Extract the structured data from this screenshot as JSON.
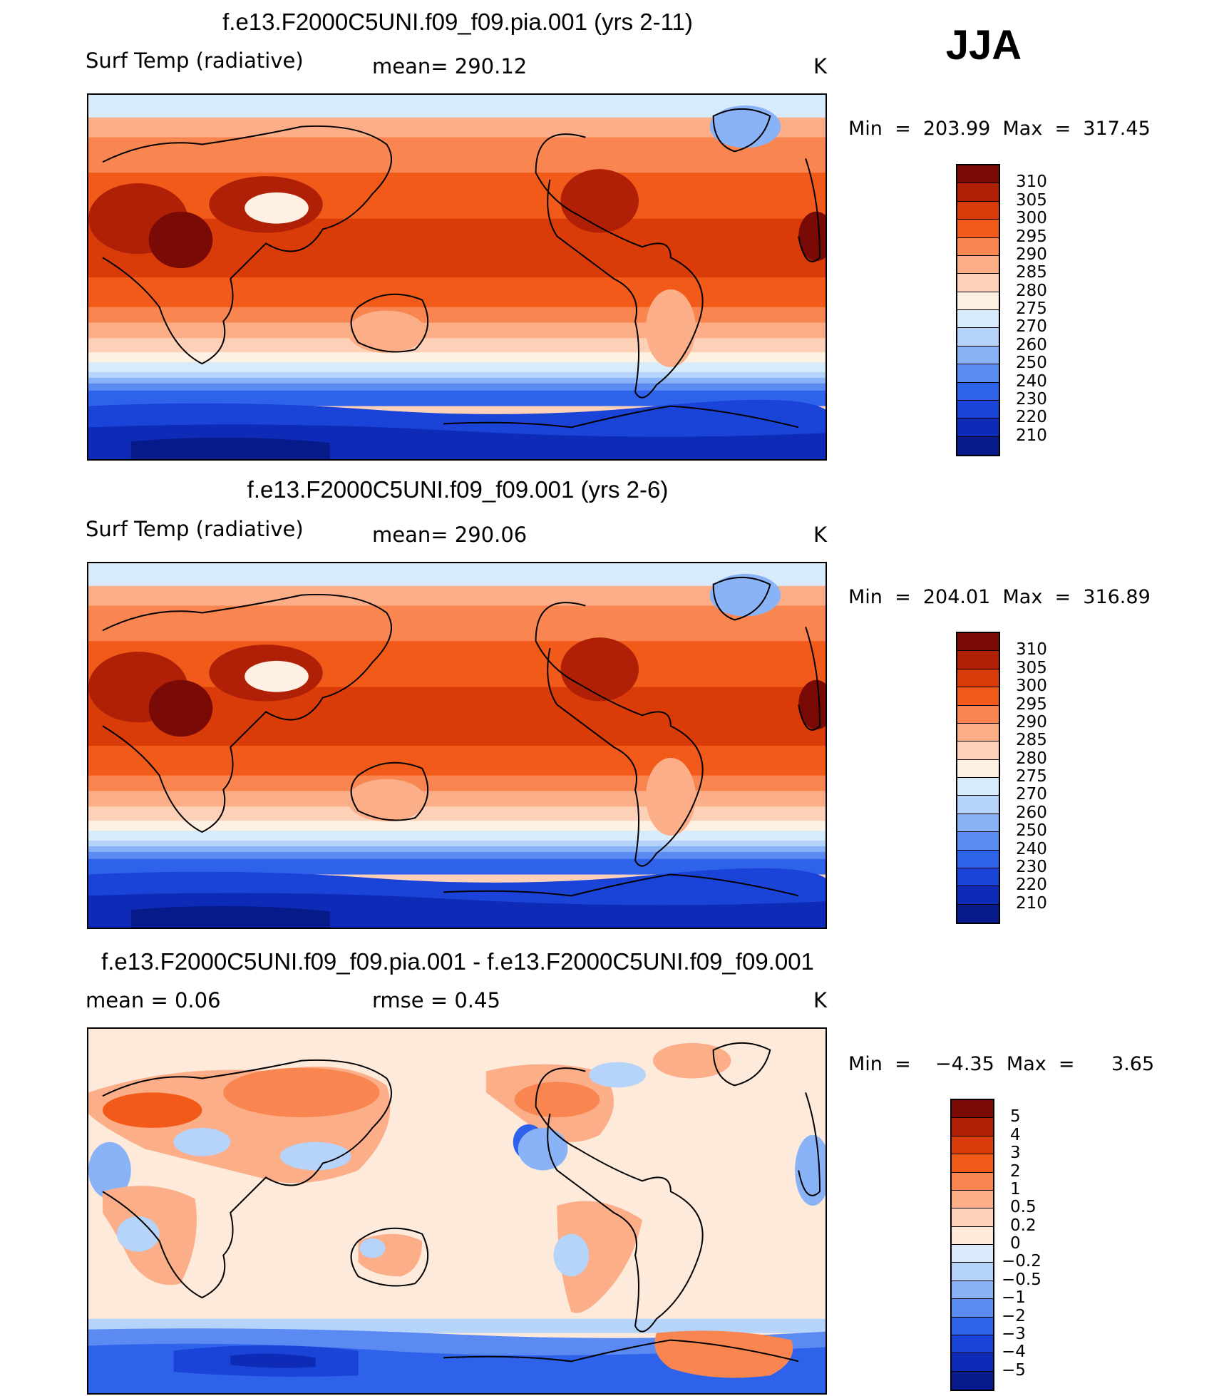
{
  "season": "JJA",
  "panels": [
    {
      "title": "f.e13.F2000C5UNI.f09_f09.pia.001 (yrs 2-11)",
      "left_label": "Surf Temp (radiative)",
      "center_label": "mean=  290.12",
      "units": "K",
      "minmax": "Min  =  203.99  Max  =  317.45",
      "colorbar": {
        "labels": [
          "310",
          "305",
          "300",
          "295",
          "290",
          "285",
          "280",
          "275",
          "270",
          "260",
          "250",
          "240",
          "230",
          "220",
          "210"
        ],
        "colors": [
          "#7a0a05",
          "#b02007",
          "#d93b09",
          "#f25a1a",
          "#f98650",
          "#fcae88",
          "#fdd1b8",
          "#fef0e2",
          "#d8ebfb",
          "#b6d3fa",
          "#8ab3f7",
          "#5b8af3",
          "#2f62ea",
          "#1a44d8",
          "#0e2bb8",
          "#061a8a"
        ]
      }
    },
    {
      "title": "f.e13.F2000C5UNI.f09_f09.001 (yrs 2-6)",
      "left_label": "Surf Temp (radiative)",
      "center_label": "mean=  290.06",
      "units": "K",
      "minmax": "Min  =  204.01  Max  =  316.89",
      "colorbar": {
        "labels": [
          "310",
          "305",
          "300",
          "295",
          "290",
          "285",
          "280",
          "275",
          "270",
          "260",
          "250",
          "240",
          "230",
          "220",
          "210"
        ],
        "colors": [
          "#7a0a05",
          "#b02007",
          "#d93b09",
          "#f25a1a",
          "#f98650",
          "#fcae88",
          "#fdd1b8",
          "#fef0e2",
          "#d8ebfb",
          "#b6d3fa",
          "#8ab3f7",
          "#5b8af3",
          "#2f62ea",
          "#1a44d8",
          "#0e2bb8",
          "#061a8a"
        ]
      }
    },
    {
      "title": "f.e13.F2000C5UNI.f09_f09.pia.001 - f.e13.F2000C5UNI.f09_f09.001",
      "left_label": "mean =     0.06",
      "center_label": "rmse =     0.45",
      "units": "K",
      "minmax": "Min  =    −4.35  Max  =      3.65",
      "colorbar": {
        "labels": [
          "5",
          "4",
          "3",
          "2",
          "1",
          "0.5",
          "0.2",
          "0",
          "−0.2",
          "−0.5",
          "−1",
          "−2",
          "−3",
          "−4",
          "−5"
        ],
        "colors": [
          "#7a0a05",
          "#b02007",
          "#d93b09",
          "#f25a1a",
          "#f98650",
          "#fcae88",
          "#fdd1b8",
          "#fdeadb",
          "#dcebfb",
          "#b6d3fa",
          "#8ab3f7",
          "#5b8af3",
          "#2f62ea",
          "#1a44d8",
          "#0e2bb8",
          "#061a8a"
        ]
      }
    }
  ]
}
